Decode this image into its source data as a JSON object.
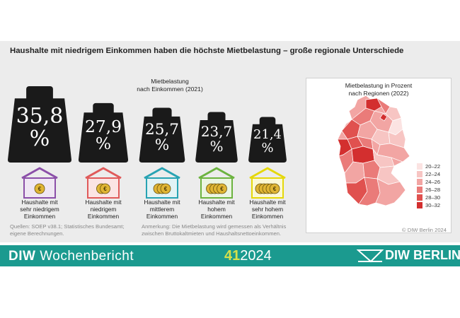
{
  "headline": "Haushalte mit niedrigem Einkommen haben die höchste Mietbelastung – große regionale Unterschiede",
  "chart_data": [
    {
      "type": "bar",
      "title_line1": "Mietbelastung",
      "title_line2": "nach Einkommen (2021)",
      "categories": [
        [
          "Haushalte mit",
          "sehr niedrigem",
          "Einkommen"
        ],
        [
          "Haushalte mit",
          "niedrigem",
          "Einkommen"
        ],
        [
          "Haushalte mit",
          "mittlerem",
          "Einkommen"
        ],
        [
          "Haushalte mit",
          "hohem",
          "Einkommen"
        ],
        [
          "Haushalte mit",
          "sehr hohem",
          "Einkommen"
        ]
      ],
      "values": [
        35.8,
        27.9,
        25.7,
        23.7,
        21.4
      ],
      "value_labels": [
        "35,8",
        "27,9",
        "25,7",
        "23,7",
        "21,4"
      ],
      "unit": "%",
      "house_colors": [
        "#8b4fa8",
        "#e05a5a",
        "#27a3b3",
        "#6cb33f",
        "#e5d80a"
      ],
      "house_fills": [
        "#efe6f3",
        "#fbe4e4",
        "#e2f3f5",
        "#ebf5e2",
        "#fbf8d6"
      ],
      "coins": [
        1,
        2,
        3,
        4,
        5
      ]
    },
    {
      "type": "heatmap",
      "title_line1": "Mietbelastung in Prozent",
      "title_line2": "nach Regionen (2022)",
      "legend": [
        {
          "label": "20–22",
          "color": "#fbe3e2"
        },
        {
          "label": "22–24",
          "color": "#f7c5c3"
        },
        {
          "label": "24–26",
          "color": "#f2a5a3"
        },
        {
          "label": "26–28",
          "color": "#ea7b79"
        },
        {
          "label": "28–30",
          "color": "#e0514f"
        },
        {
          "label": "30–32",
          "color": "#d32f2f"
        }
      ]
    }
  ],
  "footnotes": {
    "sources_line1": "Quellen: SOEP v38.1; Statistisches Bundesamt;",
    "sources_line2": "eigene Berechnungen.",
    "note_line1": "Anmerkung: Die Mietbelastung wird gemessen als Verhältnis",
    "note_line2": "zwischen Bruttokaltmieten und Haushaltsnettoeinkommen.",
    "copyright": "© DIW Berlin 2024"
  },
  "banner": {
    "brand_bold": "DIW",
    "brand_light": "Wochenbericht",
    "issue_number": "41",
    "issue_year": "2024",
    "logo_text": "DIW BERLIN"
  },
  "colors": {
    "teal": "#1b9a8f",
    "weight": "#1a1a1a",
    "coin": "#e0b534"
  }
}
